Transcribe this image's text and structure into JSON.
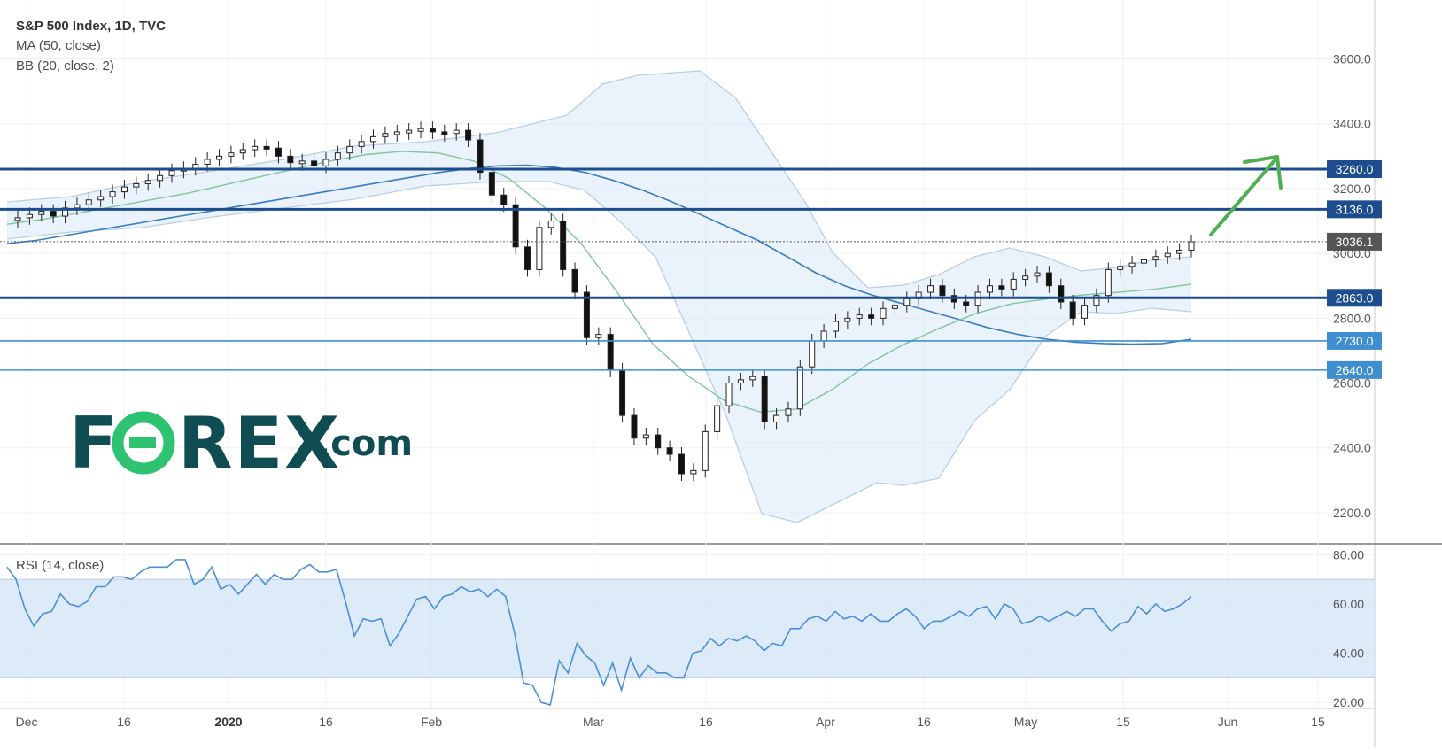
{
  "legend": {
    "title": "S&P 500 Index, 1D, TVC",
    "ma": "MA (50, close)",
    "bb": "BB (20, close, 2)",
    "rsi": "RSI (14, close)"
  },
  "logo": {
    "text": "FOREX.com"
  },
  "colors": {
    "price_level_strong": "#1e4d8f",
    "price_level_light": "#3f8fd0",
    "current_price": "#555555",
    "bb_fill": "#dceaf9",
    "bb_band": "#b9cfe3",
    "ma_line": "#3a7cc0",
    "bb_basis": "#7fc79a",
    "rsi_line": "#4b8fd6",
    "rsi_band": "#d5e6f8",
    "arrow": "#4caf50",
    "logo_teal": "#0f4d52",
    "logo_green": "#2fc271"
  },
  "chart_data": [
    {
      "type": "candlestick",
      "title": "S&P 500 Index, 1D, TVC",
      "y_ticks": [
        2200,
        2400,
        2600,
        2800,
        3000,
        3200,
        3400,
        3600
      ],
      "y_tick_labels": [
        "2200.0",
        "2400.0",
        "2600.0",
        "2800.0",
        "3000.0",
        "3200.0",
        "3400.0",
        "3600.0"
      ],
      "ylim": [
        2115,
        3760
      ],
      "x_tick_labels": [
        "Dec",
        "16",
        "2020",
        "16",
        "Feb",
        "Mar",
        "16",
        "Apr",
        "16",
        "May",
        "15",
        "Jun",
        "15"
      ],
      "price_levels": [
        {
          "label": "3260.0",
          "value": 3260,
          "style": "strong"
        },
        {
          "label": "3136.0",
          "value": 3136,
          "style": "strong"
        },
        {
          "label": "2863.0",
          "value": 2863,
          "style": "strong"
        },
        {
          "label": "2730.0",
          "value": 2730,
          "style": "light"
        },
        {
          "label": "2640.0",
          "value": 2640,
          "style": "light"
        }
      ],
      "current_price": {
        "label": "3036.1",
        "value": 3036.1
      },
      "series": [
        {
          "name": "MA (50, close)",
          "values": [
            3030,
            3040,
            3055,
            3070,
            3085,
            3100,
            3115,
            3130,
            3145,
            3160,
            3175,
            3190,
            3205,
            3220,
            3235,
            3250,
            3262,
            3270,
            3272,
            3265,
            3250,
            3225,
            3195,
            3160,
            3120,
            3080,
            3040,
            2990,
            2940,
            2900,
            2870,
            2845,
            2820,
            2795,
            2770,
            2750,
            2735,
            2726,
            2722,
            2720,
            2722,
            2735
          ]
        },
        {
          "name": "BB basis (20)",
          "values": [
            3090,
            3105,
            3125,
            3145,
            3165,
            3185,
            3210,
            3235,
            3260,
            3285,
            3305,
            3315,
            3310,
            3285,
            3230,
            3140,
            3030,
            2880,
            2720,
            2620,
            2545,
            2510,
            2520,
            2580,
            2660,
            2720,
            2770,
            2815,
            2845,
            2860,
            2872,
            2880,
            2890,
            2905
          ]
        }
      ]
    },
    {
      "type": "line",
      "title": "RSI (14, close)",
      "y_ticks": [
        20,
        40,
        60,
        80
      ],
      "y_tick_labels": [
        "20.00",
        "40.00",
        "60.00",
        "80.00"
      ],
      "ylim": [
        19,
        83
      ],
      "band": [
        30,
        70
      ],
      "series": [
        {
          "name": "RSI (14, close)",
          "values": [
            75,
            70,
            58,
            51,
            56,
            57,
            64,
            60,
            59,
            61,
            67,
            67,
            71,
            71,
            70,
            73,
            75,
            75,
            75,
            78,
            78,
            68,
            70,
            75,
            66,
            68,
            64,
            68,
            72,
            68,
            72,
            70,
            70,
            74,
            76,
            73,
            73,
            74,
            61,
            47,
            54,
            53,
            54,
            43,
            48,
            55,
            62,
            63,
            58,
            63,
            64,
            67,
            65,
            66,
            63,
            66,
            63,
            48,
            28,
            27,
            20,
            19,
            37,
            32,
            44,
            39,
            36,
            27,
            36,
            25,
            38,
            30,
            35,
            32,
            32,
            30,
            30,
            40,
            41,
            46,
            43,
            46,
            45,
            47,
            45,
            41,
            44,
            43,
            50,
            50,
            54,
            55,
            53,
            57,
            54,
            55,
            53,
            56,
            53,
            53,
            56,
            58,
            55,
            50,
            53,
            53,
            55,
            57,
            55,
            58,
            59,
            54,
            60,
            58,
            52,
            53,
            55,
            53,
            55,
            57,
            55,
            58,
            58,
            53,
            49,
            52,
            53,
            59,
            56,
            60,
            57,
            58,
            60,
            63
          ]
        }
      ]
    }
  ]
}
